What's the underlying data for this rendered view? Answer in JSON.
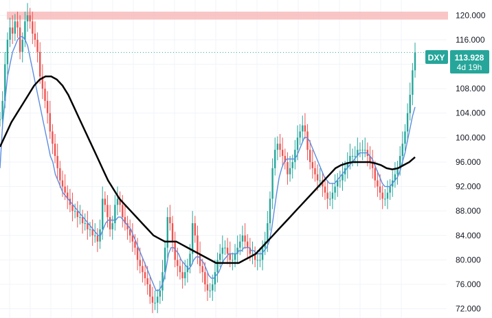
{
  "chart_data": {
    "type": "line",
    "symbol": "DXY",
    "last_price": "113.928",
    "countdown": "4d 19h",
    "ylim": [
      70.5,
      122.5
    ],
    "y_ticks": [
      "120.000",
      "116.000",
      "112.000",
      "108.000",
      "104.000",
      "100.000",
      "96.000",
      "92.000",
      "88.000",
      "84.000",
      "80.000",
      "76.000",
      "72.000"
    ],
    "resistance_zone": [
      119.3,
      120.6
    ],
    "series": [
      {
        "role": "price",
        "color": "#ef5350",
        "values": [
          103,
          106,
          112,
          116,
          118,
          117,
          119,
          118,
          114,
          116,
          119,
          120,
          119,
          117,
          116,
          114,
          110,
          108,
          106,
          104,
          101,
          99,
          97,
          95,
          93,
          92,
          91,
          90,
          89,
          88,
          88,
          87,
          87,
          86,
          86,
          85,
          85,
          84,
          84,
          83,
          85,
          90,
          89,
          87,
          85,
          86,
          89,
          90,
          89,
          87,
          86,
          85,
          84,
          83,
          82,
          80,
          79,
          78,
          77,
          76,
          74,
          73,
          73,
          74,
          75,
          78,
          82,
          87,
          86,
          83,
          80,
          79,
          78,
          77,
          78,
          79,
          81,
          86,
          84,
          81,
          79,
          78,
          76,
          75,
          75,
          76,
          78,
          80,
          81,
          82,
          82,
          81,
          80,
          80,
          81,
          82,
          83,
          84,
          83,
          82,
          81,
          81,
          80,
          80,
          80,
          82,
          83,
          86,
          90,
          95,
          98,
          99,
          98,
          97,
          96,
          94,
          95,
          96,
          98,
          100,
          101,
          102,
          101,
          98,
          96,
          95,
          94,
          93,
          93,
          92,
          91,
          90,
          90,
          91,
          92,
          93,
          93,
          94,
          95,
          96,
          97,
          97,
          97,
          98,
          98,
          98,
          98,
          97,
          96,
          95,
          93,
          92,
          91,
          90,
          90,
          91,
          92,
          93,
          94,
          95,
          97,
          99,
          101,
          104,
          107,
          111,
          113.928
        ]
      },
      {
        "role": "short_ma",
        "color": "#5b8ce0",
        "values": [
          95,
          102,
          106,
          110,
          112,
          114,
          115,
          116,
          116.5,
          116.5,
          116,
          115,
          113,
          111,
          109,
          107,
          105,
          103,
          101,
          99,
          97,
          96,
          94,
          93,
          92,
          91,
          90.5,
          90,
          89.5,
          89,
          88.5,
          88,
          87.5,
          87,
          86.5,
          86,
          85.5,
          85,
          84.5,
          84,
          84,
          85,
          86,
          86.5,
          86.5,
          86.5,
          86.5,
          87,
          87,
          86.5,
          86,
          85.5,
          85,
          84,
          83,
          82,
          81,
          80,
          79,
          78,
          77,
          76,
          75,
          75,
          75.5,
          76.5,
          78.5,
          81,
          82,
          82,
          81.5,
          81,
          80,
          79.5,
          79,
          78.5,
          79,
          80,
          80.5,
          80.5,
          80,
          79.5,
          78.5,
          77.5,
          77,
          77,
          77.5,
          78,
          79,
          80,
          80.5,
          81,
          81,
          81,
          81,
          81.5,
          81.5,
          82,
          82,
          82,
          81.5,
          81.5,
          81,
          81,
          81,
          81.5,
          82,
          83,
          85,
          88,
          91,
          93.5,
          95,
          96,
          96.5,
          96.5,
          96.5,
          96.5,
          97,
          98,
          99,
          100,
          100,
          99.5,
          98.5,
          97.5,
          96.5,
          95.5,
          94.5,
          93.5,
          93,
          92.5,
          92.5,
          92.5,
          93,
          93.5,
          94,
          94.5,
          95,
          95.5,
          96,
          96.5,
          97,
          97.5,
          97.5,
          97.5,
          97.5,
          97,
          96.5,
          95.5,
          94.5,
          93.5,
          92.5,
          92,
          92,
          92,
          92.5,
          93,
          93.5,
          94.5,
          96,
          97.5,
          99.5,
          101.5,
          103.5,
          105
        ]
      },
      {
        "role": "long_ma",
        "color": "#000000",
        "values": [
          98.5,
          100.5,
          102.5,
          104,
          105.5,
          107,
          108.5,
          109.5,
          110,
          110,
          109.5,
          108.5,
          107,
          105,
          103,
          101,
          99,
          97,
          95,
          93,
          91.5,
          90,
          89,
          88,
          87,
          86,
          85,
          84,
          83.5,
          83,
          83,
          83,
          82.5,
          82,
          81.5,
          81,
          80.5,
          80,
          79.5,
          79.5,
          79.5,
          79.5,
          79.5,
          80,
          80.5,
          81,
          82,
          83,
          84,
          85,
          86,
          87,
          88,
          89,
          90,
          91,
          92,
          93,
          94,
          95,
          95.5,
          95.8,
          96,
          96,
          96,
          96,
          95.8,
          95.5,
          95,
          94.8,
          95,
          95.5,
          96,
          96.8
        ],
        "x_range": [
          0,
          1
        ]
      }
    ]
  },
  "badge": {
    "label": "DXY",
    "price": "113.928",
    "countdown": "4d 19h",
    "color": "#26a69a"
  }
}
